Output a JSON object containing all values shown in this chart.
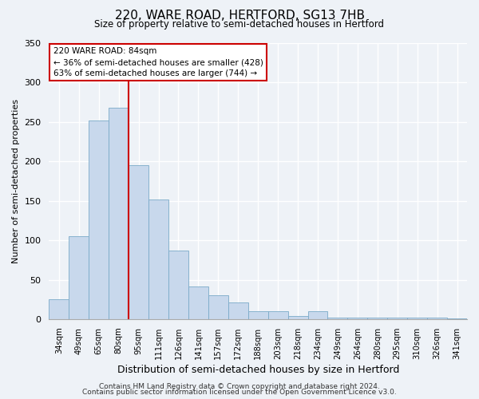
{
  "title": "220, WARE ROAD, HERTFORD, SG13 7HB",
  "subtitle": "Size of property relative to semi-detached houses in Hertford",
  "xlabel": "Distribution of semi-detached houses by size in Hertford",
  "ylabel": "Number of semi-detached properties",
  "bin_labels": [
    "34sqm",
    "49sqm",
    "65sqm",
    "80sqm",
    "95sqm",
    "111sqm",
    "126sqm",
    "141sqm",
    "157sqm",
    "172sqm",
    "188sqm",
    "203sqm",
    "218sqm",
    "234sqm",
    "249sqm",
    "264sqm",
    "280sqm",
    "295sqm",
    "310sqm",
    "326sqm",
    "341sqm"
  ],
  "bar_values": [
    25,
    105,
    252,
    268,
    195,
    152,
    87,
    41,
    30,
    21,
    10,
    10,
    4,
    10,
    2,
    2,
    2,
    2,
    2,
    2,
    1
  ],
  "bar_color": "#c8d8ec",
  "bar_edge_color": "#7aaac8",
  "vline_x": 3.5,
  "vline_color": "#cc0000",
  "annotation_title": "220 WARE ROAD: 84sqm",
  "annotation_line1": "← 36% of semi-detached houses are smaller (428)",
  "annotation_line2": "63% of semi-detached houses are larger (744) →",
  "annotation_box_color": "#ffffff",
  "annotation_border_color": "#cc0000",
  "ylim": [
    0,
    350
  ],
  "yticks": [
    0,
    50,
    100,
    150,
    200,
    250,
    300,
    350
  ],
  "footer1": "Contains HM Land Registry data © Crown copyright and database right 2024.",
  "footer2": "Contains public sector information licensed under the Open Government Licence v3.0.",
  "background_color": "#eef2f7"
}
